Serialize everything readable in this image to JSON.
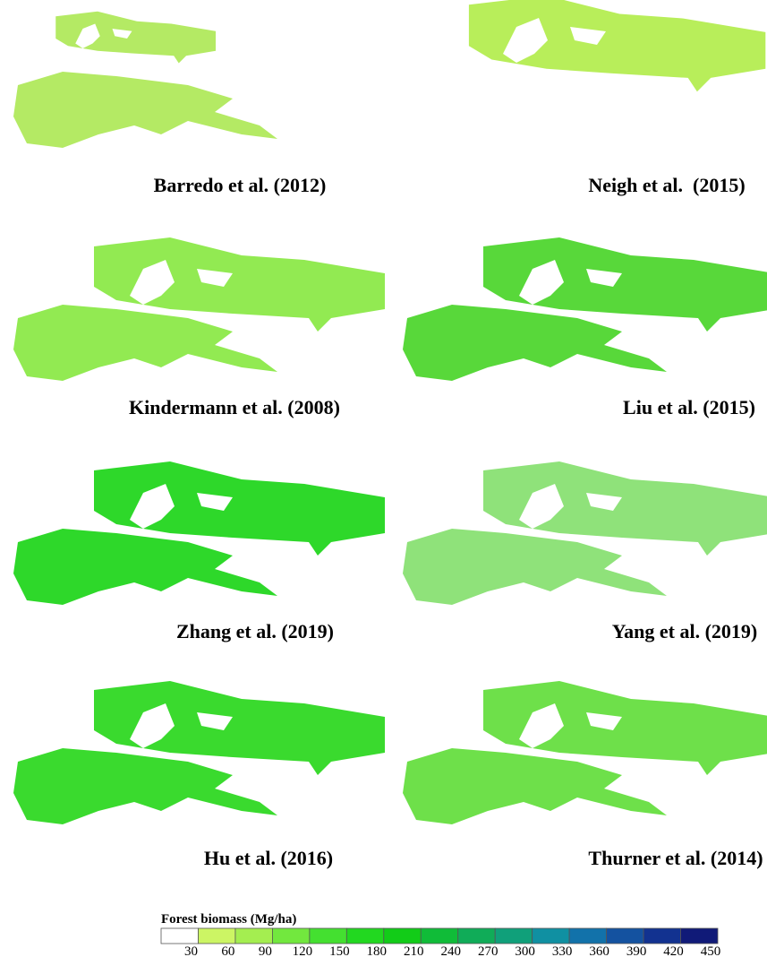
{
  "panels": [
    {
      "caption": "Barredo et al. (2012)",
      "color": "#b4ea64"
    },
    {
      "caption": "Neigh et al.  (2015)",
      "color": "#b8ee5a"
    },
    {
      "caption": "Kindermann et al. (2008)",
      "color": "#92ea52"
    },
    {
      "caption": "Liu et al. (2015)",
      "color": "#58d83a"
    },
    {
      "caption": "Zhang et al. (2019)",
      "color": "#2ed82a"
    },
    {
      "caption": "Yang et al. (2019)",
      "color": "#8fe27a"
    },
    {
      "caption": "Hu et al. (2016)",
      "color": "#3ada2e"
    },
    {
      "caption": "Thurner et al. (2014)",
      "color": "#6ee04a"
    }
  ],
  "legend": {
    "title": "Forest biomass (Mg/ha)",
    "ticks": [
      30,
      60,
      90,
      120,
      150,
      180,
      210,
      240,
      270,
      300,
      330,
      360,
      390,
      420,
      450
    ],
    "colors": [
      "#ffffff",
      "#ccf564",
      "#a4ee50",
      "#72e83e",
      "#44e030",
      "#22d820",
      "#12cc18",
      "#10bc38",
      "#10ac58",
      "#10a07a",
      "#1090a2",
      "#1272aa",
      "#1452a0",
      "#123290",
      "#101a78"
    ]
  }
}
